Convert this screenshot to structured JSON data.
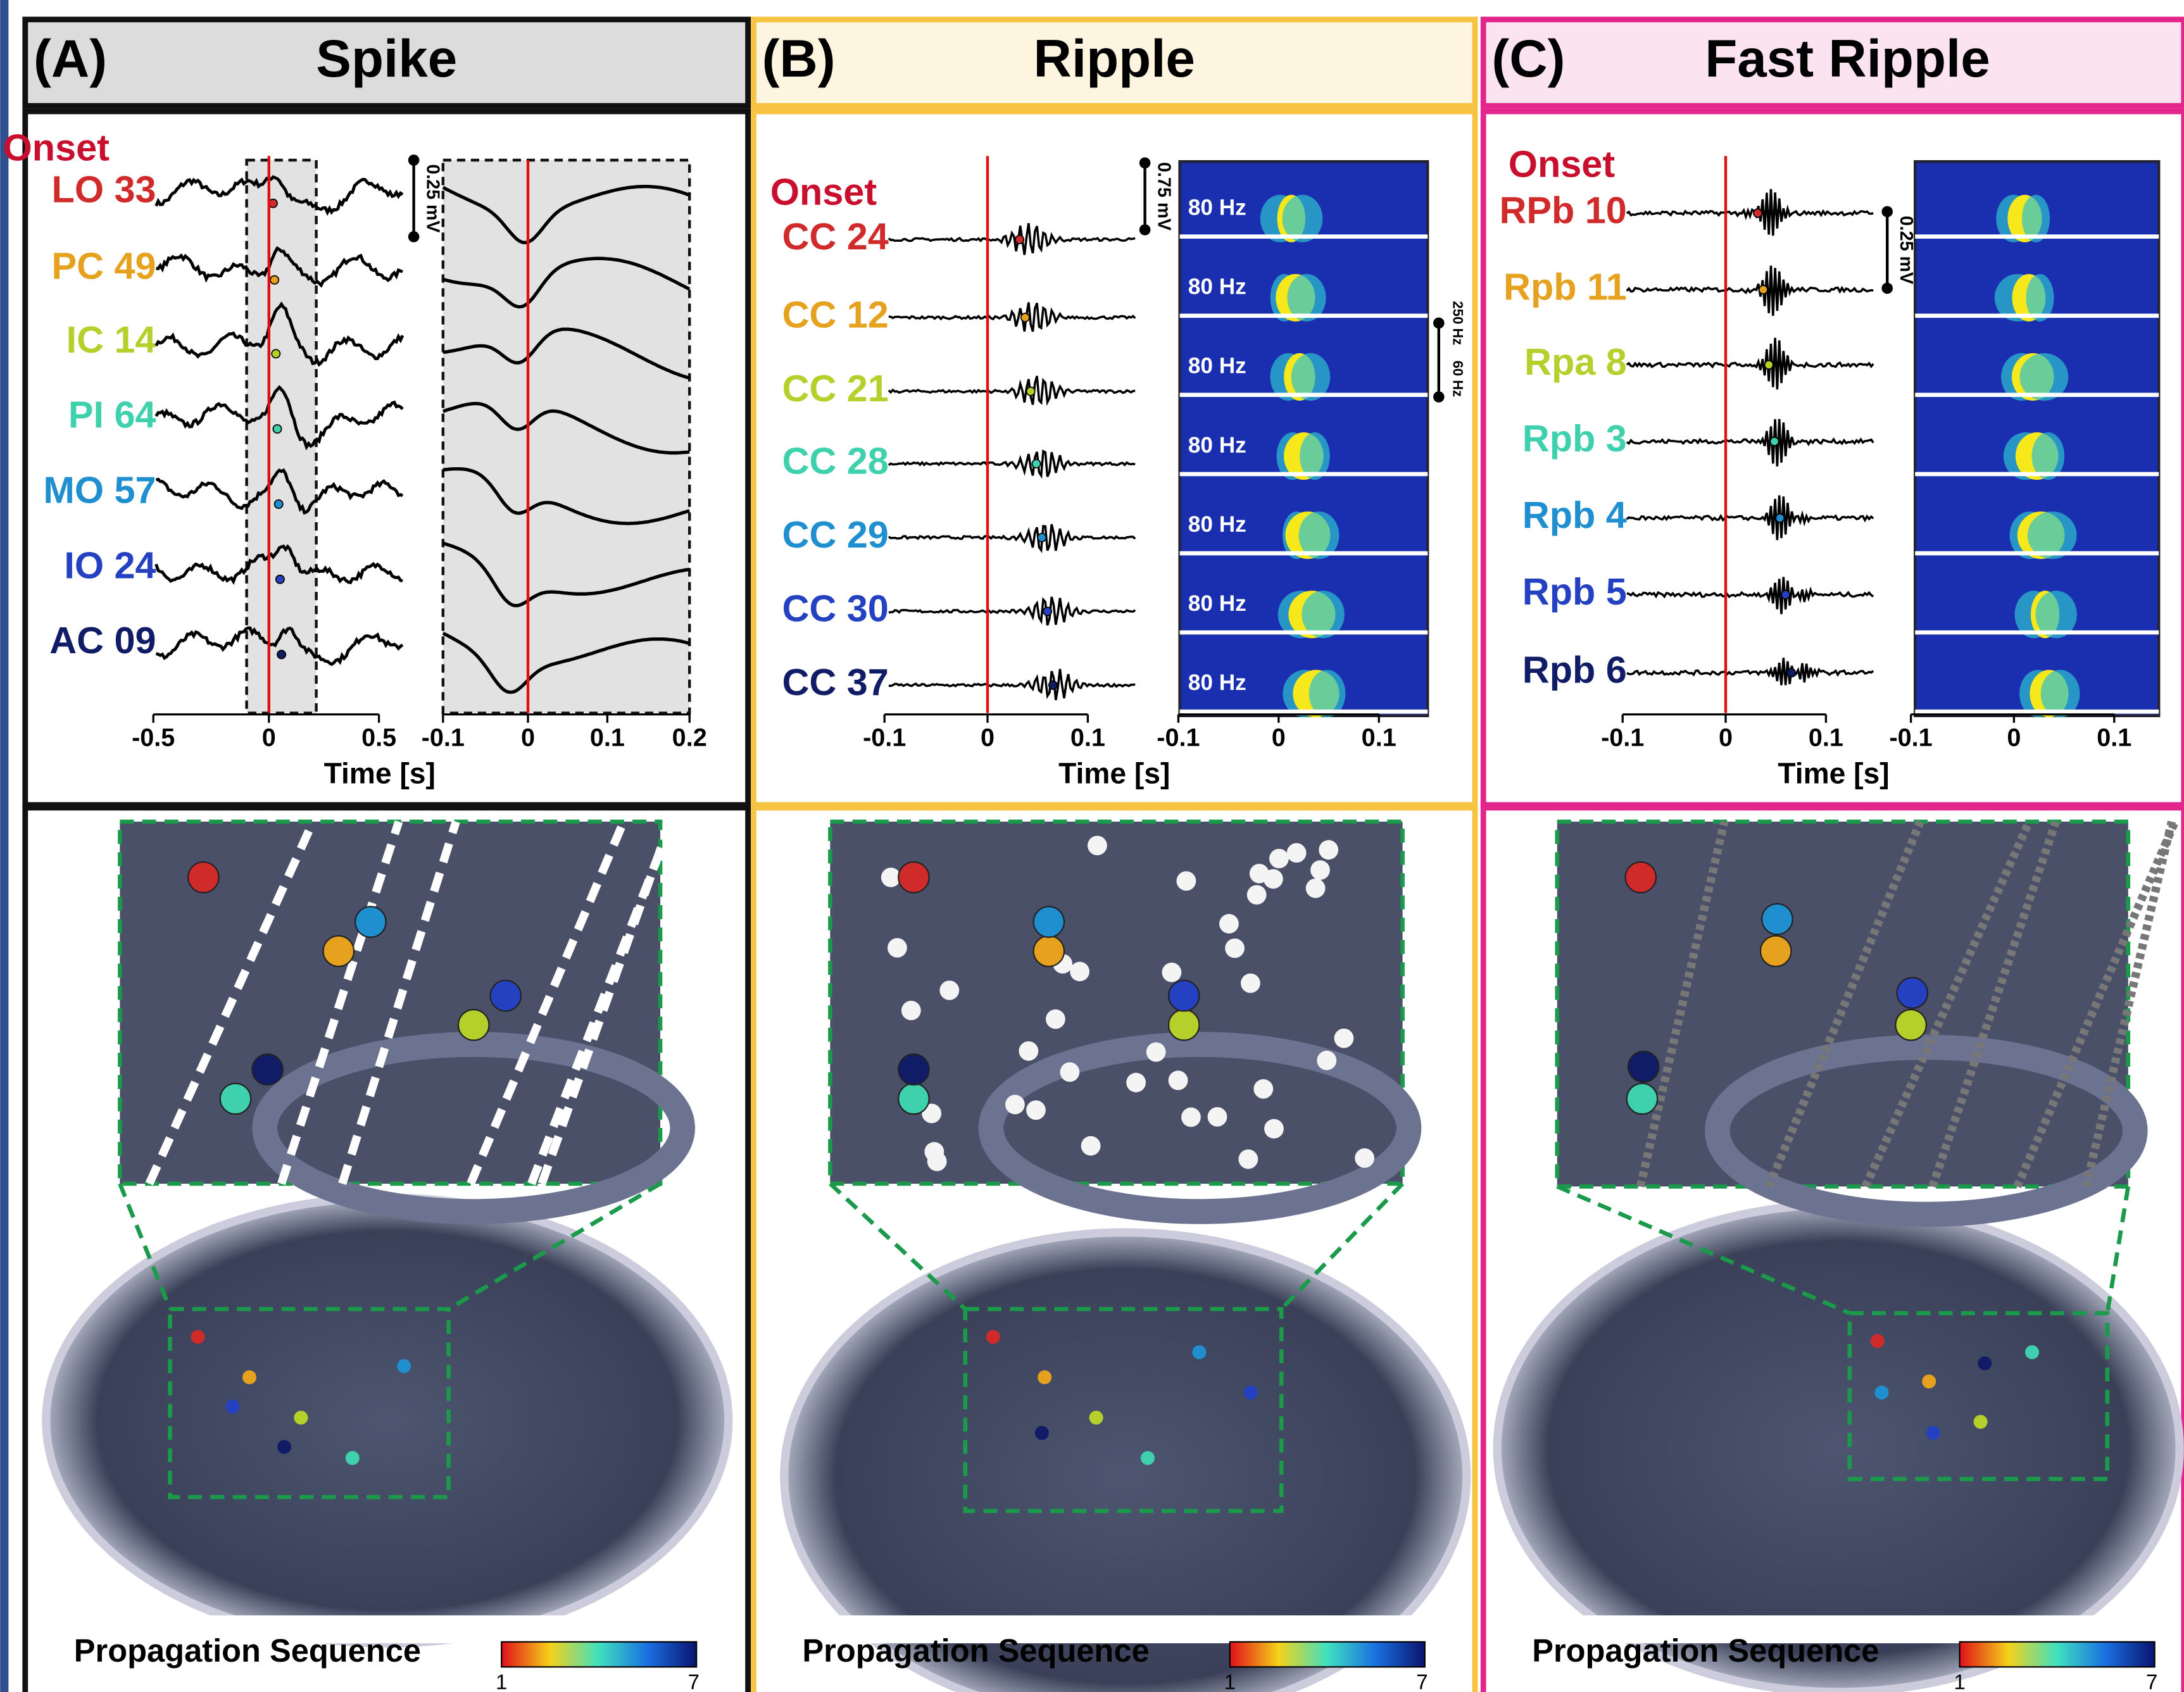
{
  "panels": [
    {
      "label": "(A)",
      "title": "Spike",
      "onset": "Onset",
      "channels": [
        "LO 33",
        "PC 49",
        "IC 14",
        "PI 64",
        "MO 57",
        "IO 24",
        "AC 09"
      ],
      "scale_bar": "0.25 mV",
      "xticks_left": [
        "-0.5",
        "0",
        "0.5"
      ],
      "xticks_right": [
        "-0.1",
        "0",
        "0.1",
        "0.2"
      ],
      "xlabel": "Time [s]",
      "legend": {
        "title": "Propagation Sequence",
        "min": "1",
        "max": "7"
      }
    },
    {
      "label": "(B)",
      "title": "Ripple",
      "onset": "Onset",
      "channels": [
        "CC 24",
        "CC 12",
        "CC 21",
        "CC 28",
        "CC 29",
        "CC 30",
        "CC 37"
      ],
      "scale_bar": "0.75 mV",
      "freq_label": "80 Hz",
      "freq_scale": [
        "250 Hz",
        "60 Hz"
      ],
      "xticks_left": [
        "-0.1",
        "0",
        "0.1"
      ],
      "xticks_right": [
        "-0.1",
        "0",
        "0.1"
      ],
      "xlabel": "Time [s]",
      "legend": {
        "title": "Propagation Sequence",
        "min": "1",
        "max": "7"
      }
    },
    {
      "label": "(C)",
      "title": "Fast Ripple",
      "onset": "Onset",
      "channels": [
        "RPb 10",
        "Rpb 11",
        "Rpa 8",
        "Rpb 3",
        "Rpb 4",
        "Rpb 5",
        "Rpb 6"
      ],
      "scale_bar": "0.25 mV",
      "xticks_left": [
        "-0.1",
        "0",
        "0.1"
      ],
      "xticks_right": [
        "-0.1",
        "0",
        "0.1"
      ],
      "xlabel": "Time [s]",
      "legend": {
        "title": "Propagation Sequence",
        "min": "1",
        "max": "7"
      }
    }
  ]
}
